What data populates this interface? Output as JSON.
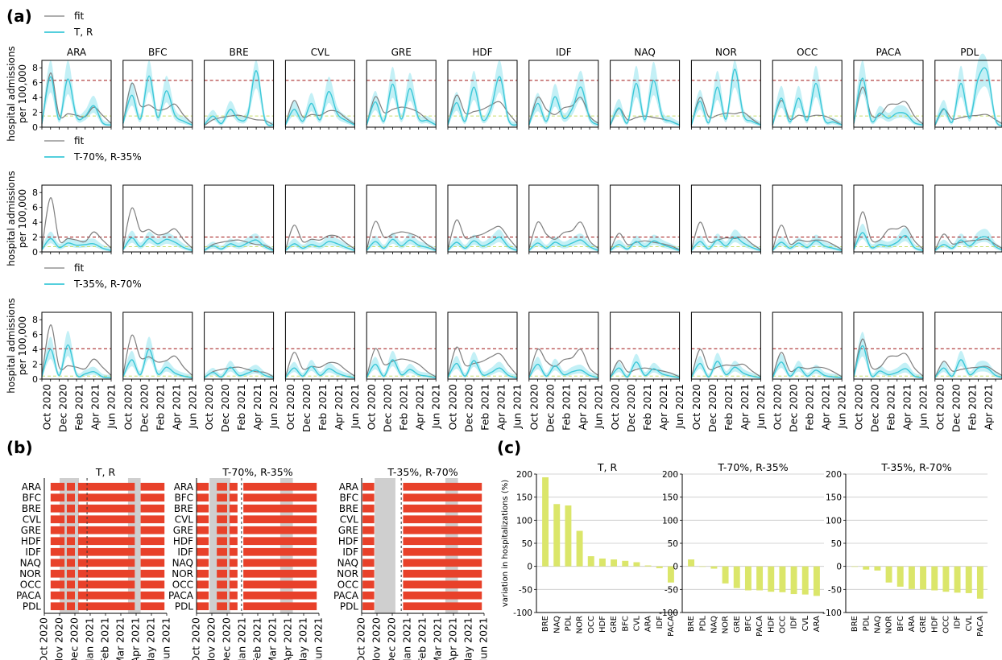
{
  "figure": {
    "panel_labels": [
      "(a)",
      "(b)",
      "(c)"
    ],
    "colors": {
      "fit": "#7f7f7f",
      "scenario": "#3cc8d8",
      "band": "#bdeef5",
      "threshold": "#a01414",
      "lowline": "#c6dd6a",
      "bar_b": "#e8412a",
      "shade": "#cfcfcf",
      "bar_c": "#dbe66a",
      "grid": "#c8c8c8"
    }
  },
  "chart_data": [
    {
      "type": "line",
      "panel": "(a)",
      "regions": [
        "ARA",
        "BFC",
        "BRE",
        "CVL",
        "GRE",
        "HDF",
        "IDF",
        "NAQ",
        "NOR",
        "OCC",
        "PACA",
        "PDL"
      ],
      "ylabel": "hospital admissions\nper 100,000",
      "yticks": [
        0,
        2,
        4,
        6,
        8
      ],
      "ylim": [
        0,
        9
      ],
      "xtick_labels": [
        "Oct 2020",
        "Dec 2020",
        "Feb 2021",
        "Apr 2021",
        "Jun 2021"
      ],
      "x": [
        "Oct 2020",
        "Nov 2020",
        "Dec 2020",
        "Jan 2021",
        "Feb 2021",
        "Mar 2021",
        "Apr 2021",
        "May 2021",
        "Jun 2021"
      ],
      "fit": {
        "ARA": [
          0.4,
          7.3,
          1.6,
          1.8,
          1.6,
          1.4,
          2.7,
          1.6,
          0.5
        ],
        "BFC": [
          0.5,
          5.9,
          2.9,
          3.0,
          2.3,
          2.5,
          3.1,
          1.6,
          0.5
        ],
        "BRE": [
          0.2,
          1.0,
          1.3,
          1.5,
          1.6,
          1.3,
          1.0,
          0.9,
          0.3
        ],
        "CVL": [
          0.3,
          3.6,
          1.4,
          1.7,
          1.6,
          2.2,
          2.1,
          1.2,
          0.4
        ],
        "GRE": [
          0.3,
          4.1,
          2.0,
          2.4,
          2.7,
          2.5,
          2.0,
          1.0,
          0.3
        ],
        "HDF": [
          0.3,
          4.3,
          1.9,
          2.1,
          2.4,
          3.0,
          3.4,
          1.9,
          0.5
        ],
        "IDF": [
          0.4,
          4.0,
          2.4,
          1.7,
          2.6,
          2.9,
          4.0,
          1.5,
          0.5
        ],
        "NAQ": [
          0.2,
          2.5,
          1.0,
          1.3,
          1.5,
          1.3,
          1.1,
          0.8,
          0.3
        ],
        "NOR": [
          0.3,
          4.0,
          1.4,
          1.6,
          1.9,
          1.8,
          2.0,
          1.1,
          0.3
        ],
        "OCC": [
          0.3,
          3.6,
          1.1,
          1.6,
          1.4,
          1.6,
          1.5,
          1.0,
          0.3
        ],
        "PACA": [
          0.5,
          5.4,
          1.7,
          1.6,
          3.0,
          3.1,
          3.4,
          1.5,
          0.4
        ],
        "PDL": [
          0.2,
          2.4,
          1.1,
          1.3,
          1.5,
          1.6,
          1.7,
          1.0,
          0.3
        ]
      },
      "rows": [
        {
          "legend": [
            "fit",
            "T, R"
          ],
          "threshold": 6.3,
          "low": 1.5,
          "scenario": {
            "ARA": [
              0.5,
              6.8,
              1.0,
              6.5,
              1.4,
              1.5,
              2.9,
              0.6,
              0.3
            ],
            "BFC": [
              0.5,
              4.3,
              1.1,
              6.9,
              1.3,
              4.9,
              1.6,
              0.8,
              0.3
            ],
            "BRE": [
              0.3,
              1.5,
              0.5,
              2.4,
              1.0,
              1.6,
              7.6,
              1.0,
              0.3
            ],
            "CVL": [
              0.3,
              2.4,
              0.8,
              3.2,
              1.0,
              4.8,
              1.8,
              0.9,
              0.3
            ],
            "GRE": [
              0.3,
              3.4,
              0.8,
              5.8,
              1.1,
              5.2,
              1.2,
              0.9,
              0.3
            ],
            "HDF": [
              0.3,
              3.3,
              0.8,
              5.4,
              1.0,
              2.6,
              6.8,
              1.0,
              0.3
            ],
            "IDF": [
              0.3,
              3.2,
              0.8,
              4.1,
              1.2,
              2.5,
              5.4,
              1.2,
              0.3
            ],
            "NAQ": [
              0.3,
              2.6,
              0.6,
              5.9,
              1.0,
              6.3,
              1.5,
              0.8,
              0.3
            ],
            "NOR": [
              0.3,
              3.5,
              0.6,
              5.4,
              1.1,
              7.8,
              1.7,
              0.8,
              0.3
            ],
            "OCC": [
              0.3,
              3.9,
              0.7,
              3.9,
              0.9,
              5.9,
              1.0,
              0.7,
              0.3
            ],
            "PACA": [
              0.5,
              6.6,
              0.9,
              1.9,
              1.2,
              1.9,
              1.8,
              0.6,
              0.3
            ],
            "PDL": [
              0.3,
              2.5,
              0.7,
              5.9,
              1.2,
              6.6,
              7.6,
              1.0,
              0.3
            ]
          }
        },
        {
          "legend": [
            "fit",
            "T-70%, R-35%"
          ],
          "threshold": 2.0,
          "low": 0.7,
          "scenario": {
            "ARA": [
              0.3,
              1.8,
              0.6,
              1.2,
              0.9,
              1.0,
              1.1,
              0.5,
              0.2
            ],
            "BFC": [
              0.3,
              1.9,
              0.7,
              1.8,
              1.1,
              1.7,
              1.3,
              0.6,
              0.2
            ],
            "BRE": [
              0.2,
              0.8,
              0.4,
              1.1,
              0.7,
              1.2,
              1.6,
              0.7,
              0.2
            ],
            "CVL": [
              0.2,
              1.1,
              0.5,
              1.0,
              0.7,
              1.4,
              1.1,
              0.6,
              0.2
            ],
            "GRE": [
              0.2,
              1.4,
              0.5,
              1.7,
              0.8,
              1.6,
              0.9,
              0.6,
              0.2
            ],
            "HDF": [
              0.2,
              1.3,
              0.5,
              1.5,
              0.8,
              1.3,
              2.0,
              0.7,
              0.2
            ],
            "IDF": [
              0.2,
              1.2,
              0.5,
              1.3,
              0.8,
              1.2,
              1.6,
              0.7,
              0.2
            ],
            "NAQ": [
              0.2,
              1.0,
              0.4,
              1.4,
              0.7,
              1.5,
              1.0,
              0.6,
              0.2
            ],
            "NOR": [
              0.2,
              1.4,
              0.4,
              1.6,
              0.8,
              2.0,
              1.2,
              0.6,
              0.2
            ],
            "OCC": [
              0.2,
              1.3,
              0.5,
              1.2,
              0.6,
              1.5,
              0.8,
              0.5,
              0.2
            ],
            "PACA": [
              0.3,
              2.6,
              0.6,
              1.0,
              0.8,
              1.3,
              2.2,
              0.6,
              0.2
            ],
            "PDL": [
              0.2,
              1.0,
              0.5,
              1.6,
              0.8,
              1.8,
              2.0,
              0.7,
              0.2
            ]
          }
        },
        {
          "legend": [
            "fit",
            "T-35%, R-70%"
          ],
          "threshold": 4.1,
          "low": 0.4,
          "scenario": {
            "ARA": [
              0.3,
              4.0,
              0.5,
              4.6,
              0.6,
              0.7,
              1.0,
              0.3,
              0.2
            ],
            "BFC": [
              0.3,
              2.6,
              0.6,
              4.0,
              0.7,
              1.6,
              0.8,
              0.4,
              0.2
            ],
            "BRE": [
              0.2,
              0.9,
              0.3,
              1.6,
              0.5,
              0.8,
              1.2,
              0.5,
              0.2
            ],
            "CVL": [
              0.2,
              1.5,
              0.4,
              1.7,
              0.5,
              1.4,
              0.8,
              0.4,
              0.2
            ],
            "GRE": [
              0.2,
              2.0,
              0.4,
              2.6,
              0.6,
              1.3,
              0.6,
              0.4,
              0.2
            ],
            "HDF": [
              0.2,
              2.1,
              0.4,
              2.5,
              0.6,
              0.9,
              1.5,
              0.5,
              0.2
            ],
            "IDF": [
              0.2,
              2.0,
              0.4,
              1.8,
              0.6,
              1.0,
              1.2,
              0.5,
              0.2
            ],
            "NAQ": [
              0.2,
              1.5,
              0.3,
              2.3,
              0.5,
              1.4,
              0.7,
              0.4,
              0.2
            ],
            "NOR": [
              0.2,
              2.1,
              0.3,
              2.4,
              0.6,
              1.6,
              0.8,
              0.4,
              0.2
            ],
            "OCC": [
              0.2,
              2.3,
              0.4,
              1.6,
              0.4,
              1.2,
              0.5,
              0.3,
              0.2
            ],
            "PACA": [
              0.3,
              4.5,
              0.5,
              1.1,
              0.6,
              0.9,
              1.4,
              0.4,
              0.2
            ],
            "PDL": [
              0.2,
              1.5,
              0.4,
              2.6,
              0.6,
              1.5,
              1.5,
              0.5,
              0.2
            ]
          }
        }
      ]
    },
    {
      "type": "bar",
      "panel": "(b)",
      "regions": [
        "ARA",
        "BFC",
        "BRE",
        "CVL",
        "GRE",
        "HDF",
        "IDF",
        "NAQ",
        "NOR",
        "OCC",
        "PACA",
        "PDL"
      ],
      "xtick_labels": [
        "Oct 2020",
        "Nov 2020",
        "Dec 2020",
        "Jan 2021",
        "Feb 2021",
        "Mar 2021",
        "Apr 2021",
        "May 2021",
        "Jun 2021"
      ],
      "xrange": [
        "2020-10-01",
        "2021-06-30"
      ],
      "charts": [
        {
          "title": "T, R",
          "bars": [
            [
              "2020-10-15",
              "2020-11-15"
            ],
            [
              "2020-11-20",
              "2020-12-08"
            ],
            [
              "2020-12-15",
              "2021-04-20"
            ],
            [
              "2021-05-03",
              "2021-06-25"
            ]
          ],
          "shades": [
            [
              "2020-11-04",
              "2020-12-17"
            ],
            [
              "2021-04-05",
              "2021-05-03"
            ]
          ],
          "marker": "2021-01-04"
        },
        {
          "title": "T-70%, R-35%",
          "bars": [
            [
              "2020-10-02",
              "2020-10-28"
            ],
            [
              "2020-11-15",
              "2020-12-08"
            ],
            [
              "2020-12-13",
              "2020-12-31"
            ],
            [
              "2021-01-13",
              "2021-06-25"
            ]
          ],
          "shades": [
            [
              "2020-10-30",
              "2020-12-15"
            ],
            [
              "2021-04-05",
              "2021-05-03"
            ]
          ],
          "marker": "2021-01-09"
        },
        {
          "title": "T-35%, R-70%",
          "bars": [
            [
              "2020-10-03",
              "2020-10-29"
            ],
            [
              "2021-01-01",
              "2021-06-25"
            ]
          ],
          "shades": [
            [
              "2020-10-30",
              "2020-12-15"
            ],
            [
              "2021-04-05",
              "2021-05-03"
            ]
          ],
          "marker": "2020-12-28"
        }
      ]
    },
    {
      "type": "bar",
      "panel": "(c)",
      "ylabel": "variation in hospitalizations (%)",
      "ylim": [
        -100,
        200
      ],
      "yticks": [
        -100,
        -50,
        0,
        50,
        100,
        150,
        200
      ],
      "charts": [
        {
          "title": "T, R",
          "categories": [
            "BRE",
            "NAQ",
            "PDL",
            "NOR",
            "OCC",
            "HDF",
            "GRE",
            "BFC",
            "CVL",
            "ARA",
            "IDF",
            "PACA"
          ],
          "values": [
            193,
            135,
            132,
            77,
            22,
            17,
            15,
            12,
            9,
            2,
            -4,
            -35
          ]
        },
        {
          "title": "T-70%, R-35%",
          "categories": [
            "BRE",
            "PDL",
            "NAQ",
            "NOR",
            "GRE",
            "BFC",
            "PACA",
            "HDF",
            "OCC",
            "IDF",
            "CVL",
            "ARA"
          ],
          "values": [
            15,
            0,
            -5,
            -37,
            -47,
            -52,
            -52,
            -55,
            -56,
            -60,
            -61,
            -64
          ]
        },
        {
          "title": "T-35%, R-70%",
          "categories": [
            "BRE",
            "PDL",
            "NAQ",
            "NOR",
            "BFC",
            "ARA",
            "GRE",
            "HDF",
            "OCC",
            "IDF",
            "CVL",
            "PACA"
          ],
          "values": [
            -1,
            -7,
            -9,
            -35,
            -44,
            -49,
            -50,
            -52,
            -55,
            -57,
            -58,
            -70
          ]
        }
      ]
    }
  ]
}
